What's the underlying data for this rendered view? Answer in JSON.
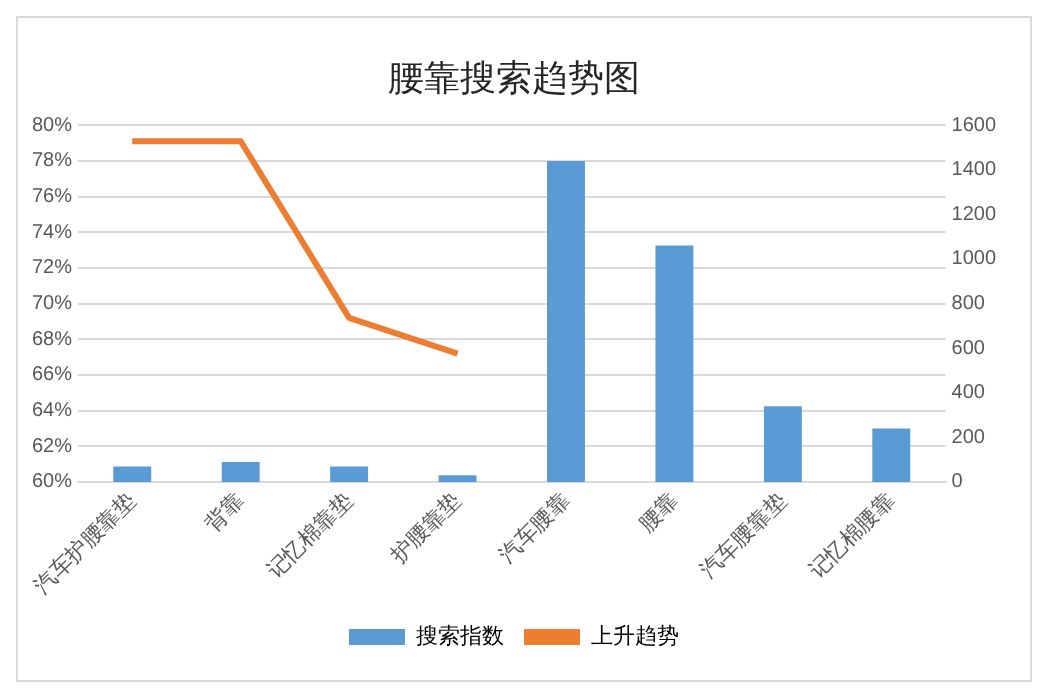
{
  "chart_data": {
    "type": "bar",
    "title": "腰靠搜索趋势图",
    "categories": [
      "汽车护腰靠垫",
      "背靠",
      "记忆棉靠垫",
      "护腰靠垫",
      "汽车腰靠",
      "腰靠",
      "汽车腰靠垫",
      "记忆棉腰靠"
    ],
    "series": [
      {
        "name": "搜索指数",
        "axis": "y2",
        "color": "#5b9bd5",
        "values": [
          70,
          90,
          70,
          30,
          1440,
          1060,
          340,
          240
        ]
      },
      {
        "name": "上升趋势",
        "type": "line",
        "color": "#ed7d31",
        "values": [
          79.1,
          79.1,
          69.2,
          67.2,
          null,
          null,
          null,
          null
        ]
      }
    ],
    "ylim": [
      60,
      80
    ],
    "yticks": [
      {
        "value": 60,
        "label": "60%"
      },
      {
        "value": 62,
        "label": "62%"
      },
      {
        "value": 64,
        "label": "64%"
      },
      {
        "value": 66,
        "label": "66%"
      },
      {
        "value": 68,
        "label": "68%"
      },
      {
        "value": 70,
        "label": "70%"
      },
      {
        "value": 72,
        "label": "72%"
      },
      {
        "value": 74,
        "label": "74%"
      },
      {
        "value": 76,
        "label": "76%"
      },
      {
        "value": 78,
        "label": "78%"
      },
      {
        "value": 80,
        "label": "80%"
      }
    ],
    "y2lim": [
      0,
      1600
    ],
    "y2ticks": [
      0,
      200,
      400,
      600,
      800,
      1000,
      1200,
      1400,
      1600
    ],
    "grid": "y",
    "legend": "bottom",
    "marker": "none"
  }
}
